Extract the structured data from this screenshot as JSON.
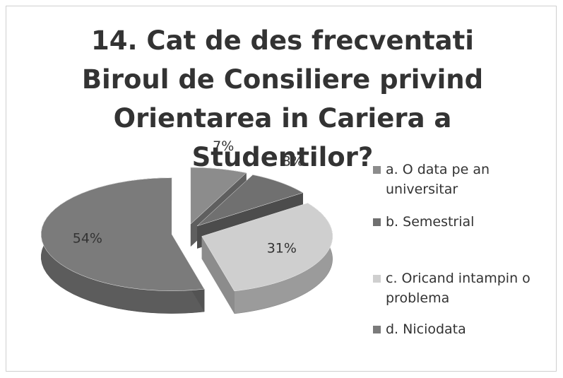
{
  "chart_data": {
    "type": "pie",
    "title": "14. Cat de des frecventati Biroul de Consiliere privind Orientarea in Cariera a Studentilor?",
    "categories": [
      "a. O data pe an universitar",
      "b. Semestrial",
      "c. Oricand intampin o problema",
      "d. Niciodata"
    ],
    "values": [
      7,
      8,
      31,
      54
    ],
    "value_labels": [
      "7%",
      "8%",
      "31%",
      "54%"
    ],
    "colors": [
      "#8c8c8c",
      "#707070",
      "#cfcfcf",
      "#7b7b7b"
    ],
    "legend": "right"
  }
}
